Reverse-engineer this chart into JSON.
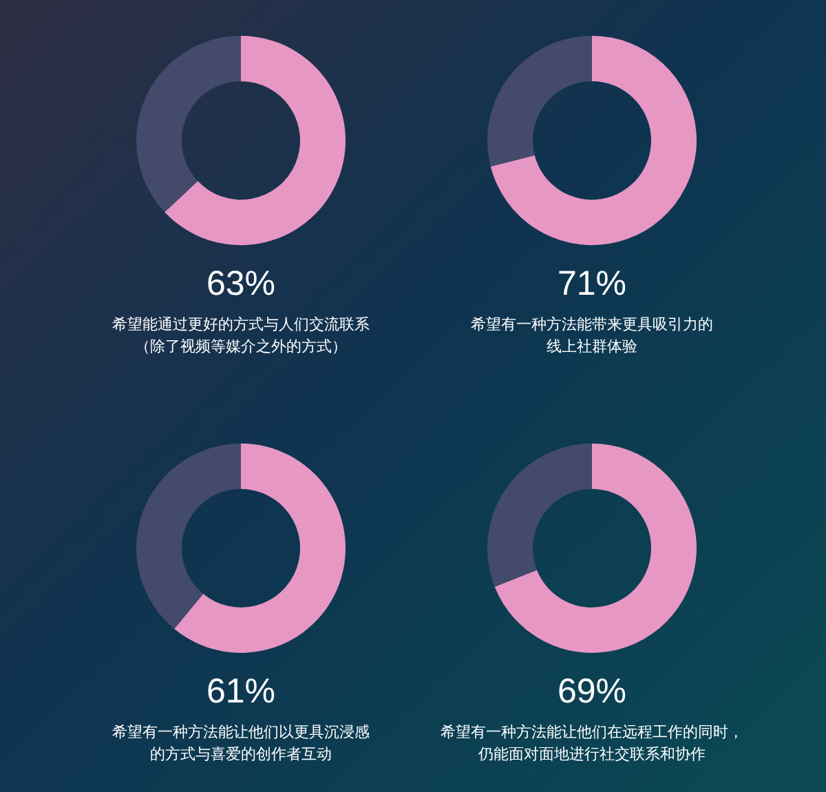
{
  "chart_data": [
    {
      "type": "donut",
      "categories": [
        null,
        null
      ],
      "values": [
        63,
        37
      ],
      "colors": [
        "#e797c4",
        "#434a6b"
      ],
      "value_labels": [
        "63%",
        null
      ],
      "title": "希望能通过更好的方式与人们交流联系",
      "subtitle": "（除了视频等媒介之外的方式）"
    },
    {
      "type": "donut",
      "categories": [
        null,
        null
      ],
      "values": [
        71,
        29
      ],
      "colors": [
        "#e797c4",
        "#434a6b"
      ],
      "value_labels": [
        "71%",
        null
      ],
      "title": "希望有一种方法能带来更具吸引力的",
      "subtitle": "线上社群体验"
    },
    {
      "type": "donut",
      "categories": [
        null,
        null
      ],
      "values": [
        61,
        39
      ],
      "colors": [
        "#e797c4",
        "#434a6b"
      ],
      "value_labels": [
        "61%",
        null
      ],
      "title": "希望有一种方法能让他们以更具沉浸感",
      "subtitle": "的方式与喜爱的创作者互动"
    },
    {
      "type": "donut",
      "categories": [
        null,
        null
      ],
      "values": [
        69,
        31
      ],
      "colors": [
        "#e797c4",
        "#434a6b"
      ],
      "value_labels": [
        "69%",
        null
      ],
      "title": "希望有一种方法能让他们在远程工作的同时，",
      "subtitle": "仍能面对面地进行社交联系和协作"
    }
  ]
}
